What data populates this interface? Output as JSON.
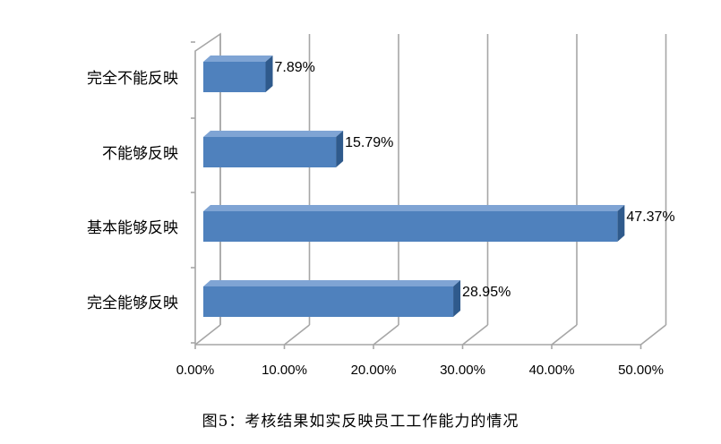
{
  "caption": "图5：考核结果如实反映员工工作能力的情况",
  "chart_data": {
    "type": "bar",
    "orientation": "horizontal",
    "style": "3d",
    "categories": [
      "完全不能反映",
      "不能够反映",
      "基本能够反映",
      "完全能够反映"
    ],
    "values": [
      7.89,
      15.79,
      47.37,
      28.95
    ],
    "data_labels": [
      "7.89%",
      "15.79%",
      "47.37%",
      "28.95%"
    ],
    "x_ticks": [
      "0.00%",
      "10.00%",
      "20.00%",
      "30.00%",
      "40.00%",
      "50.00%"
    ],
    "xlim": [
      0,
      50
    ],
    "grid": "vertical",
    "colors": {
      "bar_front": "#4f81bd",
      "bar_top": "#7fa4d4",
      "bar_side": "#2f5a8c",
      "grid": "#a6a6a6"
    }
  }
}
